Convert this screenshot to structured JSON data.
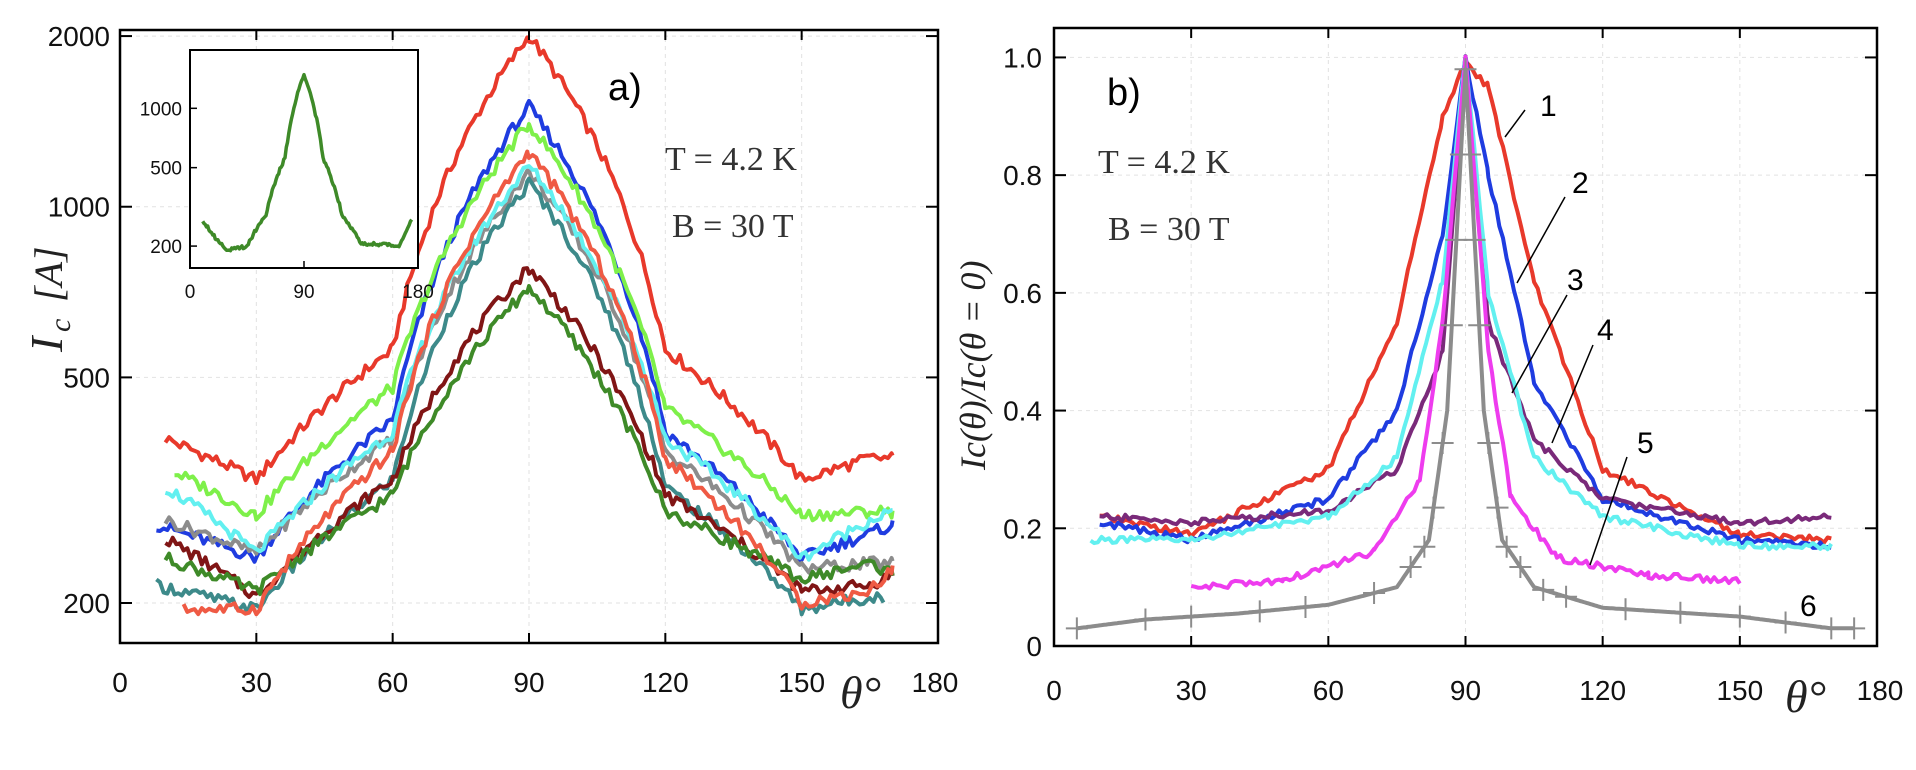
{
  "chart_data": [
    {
      "type": "line",
      "panel_label": "a)",
      "xlabel": "θ°",
      "ylabel": "I_c [A]",
      "ylabel_main": "I",
      "ylabel_sub": "c",
      "ylabel_unit": "[A]",
      "yscale": "log",
      "xlim": [
        0,
        180
      ],
      "ylim": [
        170,
        2050
      ],
      "xticks": [
        "0",
        "30",
        "60",
        "90",
        "120",
        "150",
        "180"
      ],
      "xtick_values": [
        0,
        30,
        60,
        90,
        120,
        150,
        180
      ],
      "yticks": [
        "200",
        "500",
        "1000",
        "2000"
      ],
      "ytick_values": [
        200,
        500,
        1000,
        2000
      ],
      "annotations": [
        "T = 4.2 K",
        "B = 30 T"
      ],
      "series": [
        {
          "name": "red",
          "color": "#e8392b",
          "x": [
            10,
            30,
            60,
            90,
            120,
            150,
            165,
            170
          ],
          "y": [
            390,
            330,
            560,
            2000,
            560,
            330,
            360,
            360
          ]
        },
        {
          "name": "blue",
          "color": "#1f3ce0",
          "x": [
            8,
            30,
            60,
            90,
            120,
            150,
            165,
            170
          ],
          "y": [
            275,
            240,
            420,
            1500,
            400,
            240,
            265,
            275
          ]
        },
        {
          "name": "light-green",
          "color": "#7ef04a",
          "x": [
            12,
            30,
            60,
            90,
            120,
            150,
            165,
            170
          ],
          "y": [
            340,
            285,
            480,
            1400,
            440,
            285,
            290,
            290
          ]
        },
        {
          "name": "gray",
          "color": "#8c8c8c",
          "x": [
            10,
            30,
            60,
            90,
            120,
            150,
            165,
            170
          ],
          "y": [
            280,
            245,
            390,
            1150,
            370,
            230,
            235,
            235
          ]
        },
        {
          "name": "cyan",
          "color": "#62f0f0",
          "x": [
            10,
            30,
            60,
            90,
            120,
            150,
            165,
            170
          ],
          "y": [
            320,
            245,
            400,
            1180,
            390,
            240,
            280,
            290
          ]
        },
        {
          "name": "teal",
          "color": "#3d8a8a",
          "x": [
            8,
            30,
            60,
            90,
            120,
            150,
            165,
            168
          ],
          "y": [
            215,
            195,
            330,
            1100,
            320,
            195,
            205,
            205
          ]
        },
        {
          "name": "dark-red",
          "color": "#801515",
          "x": [
            10,
            30,
            60,
            90,
            120,
            150,
            165,
            170
          ],
          "y": [
            260,
            205,
            330,
            780,
            310,
            210,
            215,
            225
          ]
        },
        {
          "name": "dark-green",
          "color": "#3e8a28",
          "x": [
            10,
            30,
            60,
            90,
            120,
            150,
            165,
            170
          ],
          "y": [
            240,
            210,
            310,
            720,
            290,
            220,
            235,
            225
          ]
        },
        {
          "name": "salmon",
          "color": "#ef5a44",
          "x": [
            14,
            30,
            60,
            90,
            120,
            150,
            165,
            170
          ],
          "y": [
            195,
            195,
            370,
            1250,
            360,
            200,
            210,
            230
          ]
        }
      ],
      "inset": {
        "type": "line",
        "yscale": "log",
        "xlim": [
          0,
          180
        ],
        "ylim": [
          170,
          1800
        ],
        "xticks": [
          "0",
          "90",
          "180"
        ],
        "xtick_values": [
          0,
          90,
          180
        ],
        "yticks": [
          "200",
          "500",
          "1000"
        ],
        "ytick_values": [
          200,
          500,
          1000
        ],
        "series": [
          {
            "name": "inset-green",
            "color": "#3e8a28",
            "x": [
              10,
              20,
              30,
              45,
              60,
              75,
              90,
              105,
              120,
              135,
              150,
              165,
              175
            ],
            "y": [
              270,
              220,
              190,
              200,
              290,
              560,
              1500,
              560,
              290,
              205,
              205,
              200,
              270
            ]
          }
        ]
      }
    },
    {
      "type": "line",
      "panel_label": "b)",
      "xlabel": "θ°",
      "ylabel": "I_c(θ)/I_c(θ = 0)",
      "ylabel_text": "Ic(θ)/Ic(θ = 0)",
      "xlim": [
        0,
        180
      ],
      "ylim": [
        0,
        1.05
      ],
      "xticks": [
        "0",
        "30",
        "60",
        "90",
        "120",
        "150",
        "180"
      ],
      "xtick_values": [
        0,
        30,
        60,
        90,
        120,
        150,
        180
      ],
      "yticks": [
        "0",
        "0.2",
        "0.4",
        "0.6",
        "0.8",
        "1.0"
      ],
      "ytick_values": [
        0,
        0.2,
        0.4,
        0.6,
        0.8,
        1.0
      ],
      "annotations": [
        "T = 4.2 K",
        "B = 30 T"
      ],
      "curve_labels": [
        "1",
        "2",
        "3",
        "4",
        "5",
        "6"
      ],
      "series": [
        {
          "name": "1",
          "color": "#e8392b",
          "x": [
            10,
            30,
            60,
            75,
            85,
            90,
            95,
            105,
            120,
            150,
            170
          ],
          "y": [
            0.22,
            0.19,
            0.3,
            0.55,
            0.9,
            0.99,
            0.95,
            0.62,
            0.3,
            0.19,
            0.18
          ]
        },
        {
          "name": "2",
          "color": "#1f3ce0",
          "x": [
            10,
            30,
            60,
            75,
            85,
            90,
            95,
            105,
            120,
            150,
            170
          ],
          "y": [
            0.21,
            0.18,
            0.25,
            0.4,
            0.7,
            1.0,
            0.8,
            0.45,
            0.25,
            0.18,
            0.17
          ]
        },
        {
          "name": "3",
          "color": "#7a2a7a",
          "x": [
            10,
            30,
            60,
            75,
            85,
            90,
            95,
            105,
            120,
            150,
            170
          ],
          "y": [
            0.22,
            0.21,
            0.23,
            0.3,
            0.5,
            1.0,
            0.55,
            0.35,
            0.25,
            0.21,
            0.22
          ]
        },
        {
          "name": "4",
          "color": "#62f0f0",
          "x": [
            8,
            30,
            60,
            75,
            85,
            90,
            95,
            105,
            120,
            150,
            170
          ],
          "y": [
            0.18,
            0.18,
            0.22,
            0.32,
            0.62,
            1.0,
            0.6,
            0.32,
            0.22,
            0.17,
            0.17
          ]
        },
        {
          "name": "5",
          "color": "#ee3cee",
          "x": [
            30,
            50,
            70,
            80,
            85,
            90,
            95,
            100,
            110,
            130,
            150
          ],
          "y": [
            0.1,
            0.11,
            0.16,
            0.28,
            0.55,
            1.0,
            0.5,
            0.25,
            0.15,
            0.12,
            0.11
          ]
        },
        {
          "name": "6",
          "color": "#8c8c8c",
          "x": [
            5,
            20,
            40,
            60,
            75,
            82,
            86,
            90,
            94,
            98,
            105,
            120,
            150,
            170,
            175
          ],
          "y": [
            0.03,
            0.045,
            0.055,
            0.07,
            0.1,
            0.18,
            0.4,
            0.98,
            0.4,
            0.18,
            0.1,
            0.065,
            0.05,
            0.03,
            0.03
          ]
        }
      ]
    }
  ]
}
